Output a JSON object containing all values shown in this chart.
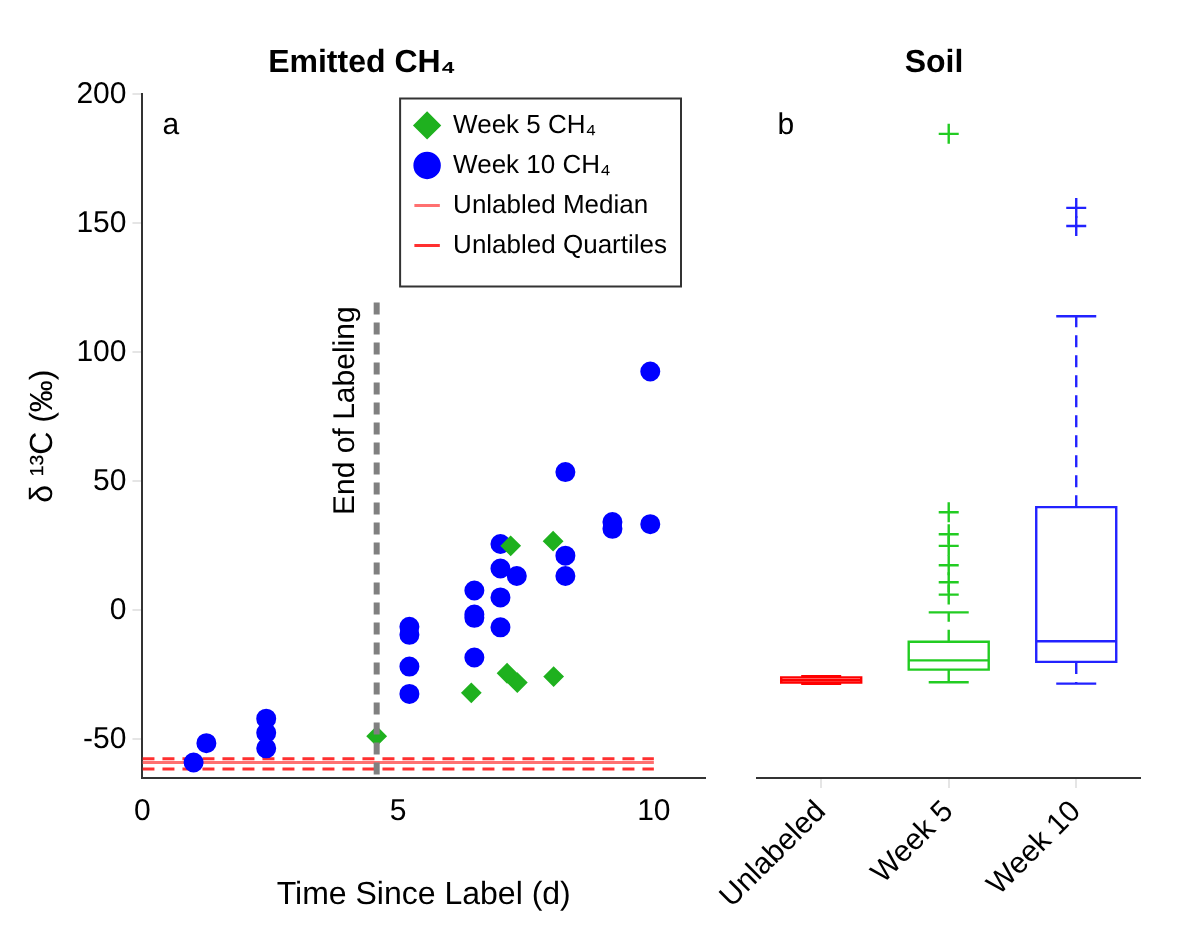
{
  "chart_data": [
    {
      "type": "scatter",
      "title": "Emitted CH₄",
      "xlabel": "Time Since Label (d)",
      "ylabel": "δ ¹³C (‰)",
      "xlim": [
        0,
        11
      ],
      "ylim": [
        -65,
        200
      ],
      "xticks": [
        0,
        5,
        10
      ],
      "yticks": [
        -50,
        0,
        50,
        100,
        150,
        200
      ],
      "grid": false,
      "legend": "top right",
      "annotations": [
        "a"
      ],
      "ref_lines": [
        {
          "axis": "x",
          "value": 4.58,
          "label": "End of Labeling",
          "color": "#808080",
          "line_style": "dashed"
        }
      ],
      "series": [
        {
          "name": "Week 5 CH₄",
          "type": "scatter",
          "marker": "diamond",
          "color": "#1fb11f",
          "x": [
            4.58,
            6.43,
            7.2,
            7.13,
            7.33,
            8.03,
            8.04
          ],
          "values": [
            -48.8,
            -32,
            25,
            -24.4,
            -28,
            26.8,
            -25.7
          ]
        },
        {
          "name": "Week 10 CH₄",
          "type": "scatter",
          "marker": "circle",
          "color": "#0000ff",
          "x": [
            1.0,
            1.25,
            2.42,
            2.42,
            2.42,
            5.22,
            5.22,
            5.22,
            5.22,
            6.49,
            6.49,
            6.49,
            6.49,
            7.0,
            7.0,
            7.0,
            7.0,
            7.32,
            8.27,
            8.27,
            8.27,
            9.19,
            9.19,
            9.93,
            9.93
          ],
          "values": [
            -59,
            -51.5,
            -42,
            -47.5,
            -53.5,
            -6.4,
            -9.5,
            -21.8,
            -32.4,
            7.7,
            -1.6,
            -2.9,
            -18.3,
            25.7,
            16.2,
            5,
            -6.6,
            13.3,
            53.6,
            21.2,
            13.3,
            34.2,
            31.6,
            92.6,
            33.4
          ]
        },
        {
          "name": "Unlabled Median",
          "type": "line",
          "marker": "none",
          "line_style": "solid",
          "color": "#ff7070",
          "x": [
            0,
            10
          ],
          "values": [
            -59,
            -59
          ]
        },
        {
          "name": "Unlabled Quartiles",
          "type": "line",
          "marker": "none",
          "line_style": "dashed",
          "color": "#ff3030",
          "x": [
            0,
            10
          ],
          "values": [
            -57.5,
            -57.5
          ]
        },
        {
          "type": "line",
          "marker": "none",
          "line_style": "dashed",
          "color": "#ff3030",
          "x": [
            0,
            10
          ],
          "values": [
            -61.5,
            -61.5
          ]
        }
      ]
    },
    {
      "type": "box",
      "title": "Soil",
      "categories": [
        "Unlabeled",
        "Week 5",
        "Week 10"
      ],
      "ylim": [
        -65,
        200
      ],
      "yticks": [
        -50,
        0,
        50,
        100,
        150,
        200
      ],
      "tick_labels": "x",
      "grid": false,
      "annotations": [
        "b"
      ],
      "colors": [
        "#ff0000",
        "#22cc22",
        "#2222ff"
      ],
      "boxes": [
        {
          "low": -28.5,
          "q1": -28,
          "median": -27,
          "q3": -26,
          "high": -25.5
        },
        {
          "low": -27.9,
          "q1": -23,
          "median": -19.4,
          "q3": -12.2,
          "high": -0.8,
          "outliers": [
            6.1,
            10.9,
            17.5,
            25,
            29.5,
            38,
            184.7
          ]
        },
        {
          "low": -28.4,
          "q1": -20,
          "median": -12,
          "q3": 40,
          "high": 114,
          "outliers": [
            149,
            156
          ]
        }
      ]
    }
  ]
}
